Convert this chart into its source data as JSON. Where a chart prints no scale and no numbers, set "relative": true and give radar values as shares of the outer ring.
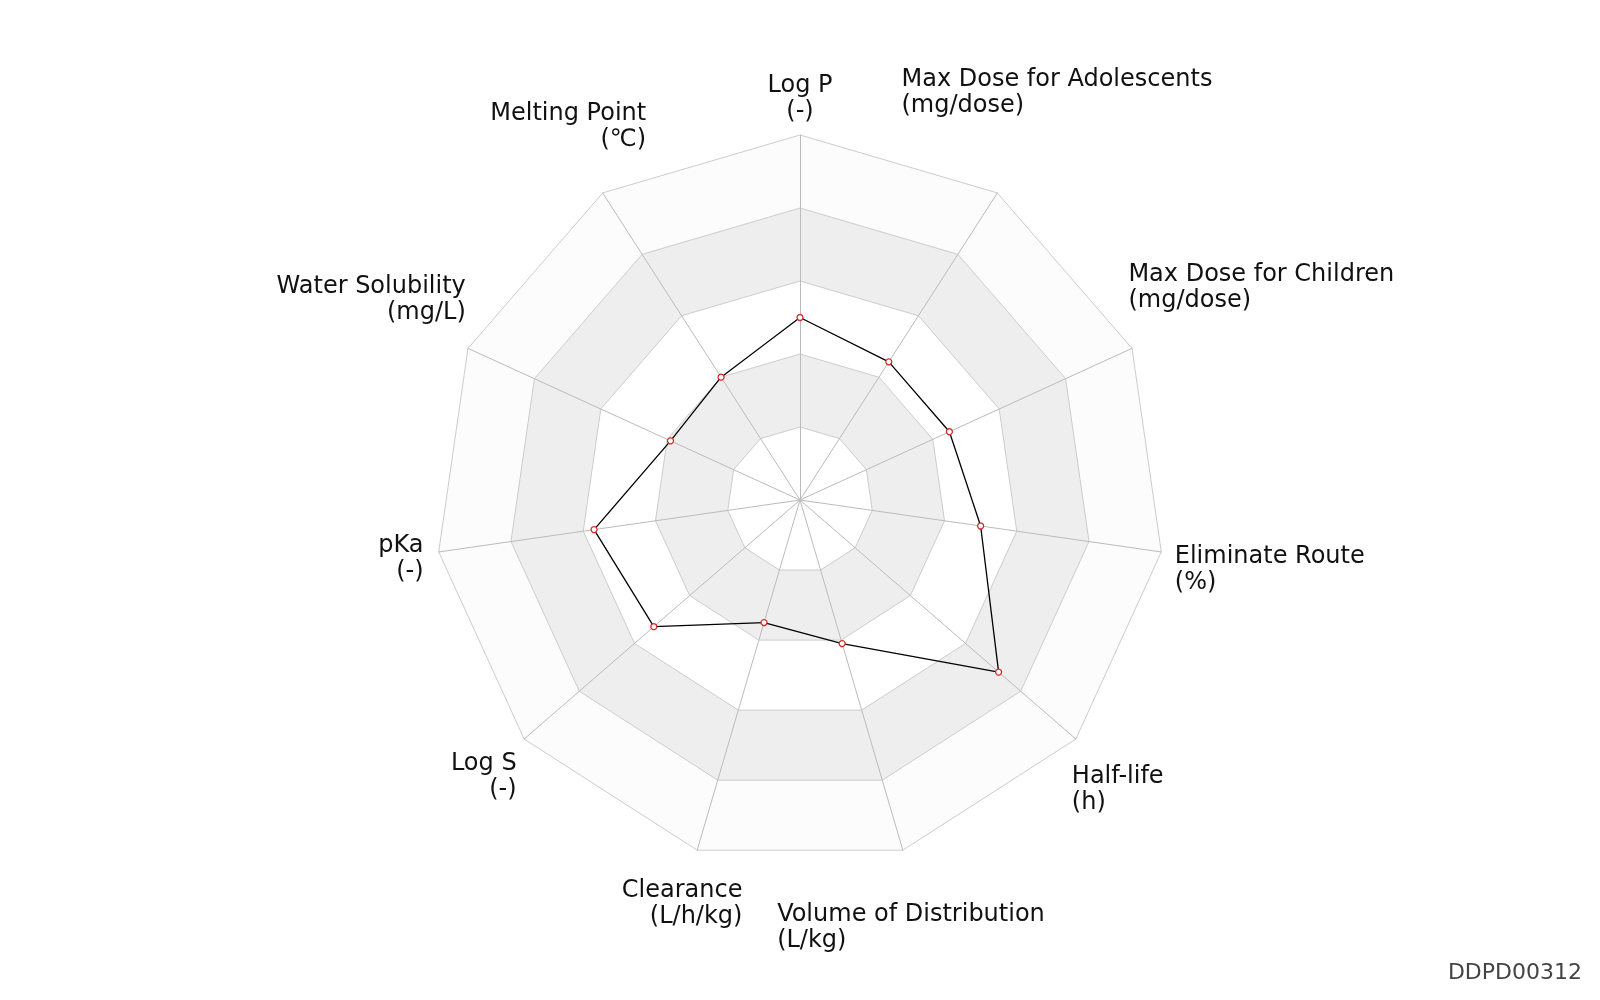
{
  "chart_data": {
    "type": "radar",
    "relative": true,
    "grid": true,
    "marker": "circle",
    "line_style": "solid",
    "categories": [
      "Log P\n(-)",
      "Max Dose for Adolescents\n(mg/dose)",
      "Max Dose for Children\n(mg/dose)",
      "Eliminate Route\n(%)",
      "Half-life\n(h)",
      "Volume of Distribution\n(L/kg)",
      "Clearance\n(L/h/kg)",
      "Log S\n(-)",
      "pKa\n(-)",
      "Water Solubility\n(mg/L)",
      "Melting Point\n(℃)"
    ],
    "series": [
      {
        "color": "#000000",
        "values": [
          0.5,
          0.45,
          0.45,
          0.5,
          0.72,
          0.41,
          0.35,
          0.53,
          0.57,
          0.39,
          0.4
        ]
      }
    ],
    "annotations": [
      "DDPD00312"
    ]
  }
}
